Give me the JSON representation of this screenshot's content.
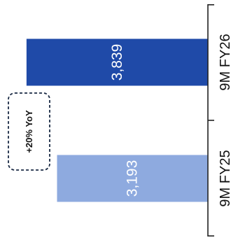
{
  "chart_data": {
    "type": "bar",
    "orientation": "horizontal",
    "categories": [
      "9M FY26",
      "9M FY25"
    ],
    "values": [
      3839,
      3193
    ],
    "value_labels": [
      "3,839",
      "3,193"
    ],
    "bar_colors": [
      "#1f4aa8",
      "#8eaadf"
    ],
    "value_label_color": "#ffffff",
    "axis_color": "#222222",
    "text_rotation": "rotated-90-ccw",
    "xlim": [
      0,
      4400
    ],
    "grid": false,
    "legend": "none",
    "title": "",
    "xlabel": "",
    "ylabel": "",
    "annotation": {
      "text": "+20% YoY",
      "style": "dashed-rounded-box",
      "border_color": "#1a2a44"
    }
  }
}
